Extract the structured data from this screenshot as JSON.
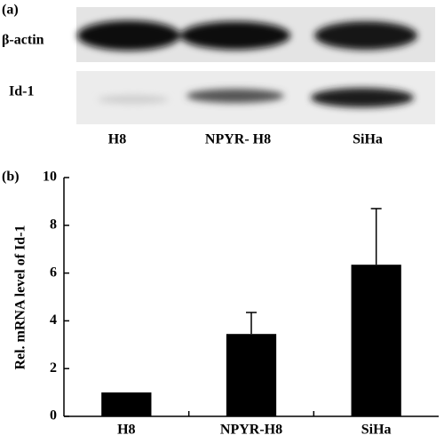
{
  "panel_a": {
    "label": "(a)",
    "rows": [
      "β-actin",
      "Id-1"
    ],
    "lanes": [
      "H8",
      "NPYR- H8",
      "SiHa"
    ]
  },
  "chart_data": {
    "type": "bar",
    "panel_label": "(b)",
    "y_label": "Rel. mRNA level of Id-1",
    "categories": [
      "H8",
      "NPYR-H8",
      "SiHa"
    ],
    "values": [
      1,
      3.45,
      6.35
    ],
    "errors": [
      0,
      0.9,
      2.35
    ],
    "color": "#000000",
    "ylim": [
      0,
      10
    ],
    "yticks": [
      0,
      2,
      4,
      6,
      8,
      10
    ],
    "grid": false
  }
}
